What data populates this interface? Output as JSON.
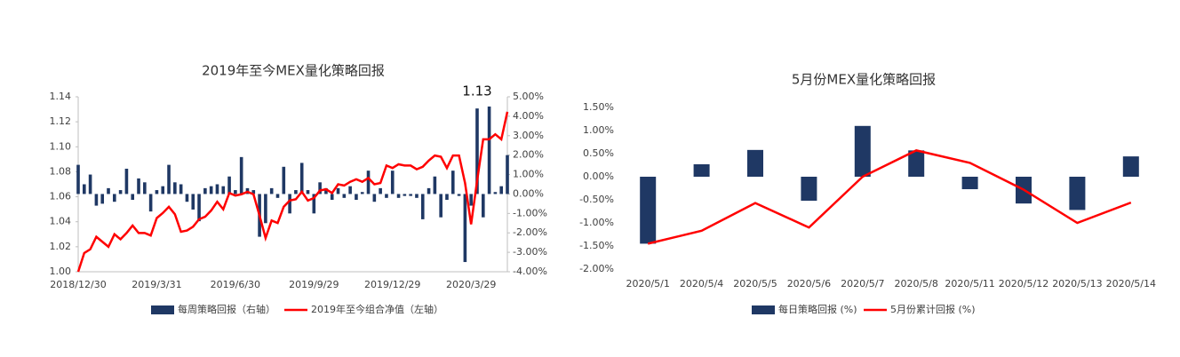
{
  "chart_data": [
    {
      "type": "combo",
      "title": "2019年至今MEX量化策略回报",
      "annotation": "1.13",
      "categories": [
        "2018/12/30",
        null,
        null,
        null,
        null,
        null,
        null,
        null,
        null,
        null,
        null,
        null,
        null,
        "2019/3/31",
        null,
        null,
        null,
        null,
        null,
        null,
        null,
        null,
        null,
        null,
        null,
        null,
        "2019/6/30",
        null,
        null,
        null,
        null,
        null,
        null,
        null,
        null,
        null,
        null,
        null,
        null,
        "2019/9/29",
        null,
        null,
        null,
        null,
        null,
        null,
        null,
        null,
        null,
        null,
        null,
        null,
        "2019/12/29",
        null,
        null,
        null,
        null,
        null,
        null,
        null,
        null,
        null,
        null,
        null,
        null,
        "2020/3/29",
        null,
        null,
        null,
        null,
        null,
        null
      ],
      "series": [
        {
          "name": "每周策略回报（右轴）",
          "type": "bar",
          "axis": "y2",
          "color": "#1f3864",
          "values": [
            1.5,
            0.5,
            1.0,
            -0.6,
            -0.5,
            0.3,
            -0.4,
            0.2,
            1.3,
            -0.3,
            0.8,
            0.6,
            -0.9,
            0.2,
            0.4,
            1.5,
            0.6,
            0.5,
            -0.4,
            -0.8,
            -1.4,
            0.3,
            0.4,
            0.5,
            0.4,
            0.9,
            0.2,
            1.9,
            0.3,
            0.2,
            -2.2,
            -1.5,
            0.3,
            -0.2,
            1.4,
            -1.0,
            0.2,
            1.6,
            0.2,
            -1.0,
            0.6,
            0.3,
            -0.3,
            0.3,
            -0.2,
            0.4,
            -0.3,
            0.1,
            1.2,
            -0.4,
            0.3,
            -0.2,
            1.2,
            -0.2,
            -0.1,
            -0.1,
            -0.2,
            -1.3,
            0.3,
            0.9,
            -1.2,
            -0.3,
            1.2,
            -0.1,
            -3.5,
            -0.6,
            4.4,
            -1.2,
            4.5,
            0.1,
            0.4,
            2.0
          ]
        },
        {
          "name": "2019年至今组合净值（左轴）",
          "type": "line",
          "color": "#ff0000",
          "values": [
            1.0,
            1.015,
            1.018,
            1.028,
            1.024,
            1.02,
            1.03,
            1.026,
            1.031,
            1.037,
            1.031,
            1.031,
            1.029,
            1.043,
            1.047,
            1.052,
            1.046,
            1.032,
            1.033,
            1.036,
            1.042,
            1.044,
            1.049,
            1.056,
            1.05,
            1.063,
            1.061,
            1.062,
            1.064,
            1.062,
            1.045,
            1.027,
            1.041,
            1.039,
            1.052,
            1.057,
            1.058,
            1.064,
            1.057,
            1.059,
            1.065,
            1.066,
            1.063,
            1.07,
            1.069,
            1.072,
            1.074,
            1.072,
            1.075,
            1.07,
            1.071,
            1.085,
            1.083,
            1.086,
            1.085,
            1.085,
            1.082,
            1.084,
            1.089,
            1.093,
            1.092,
            1.083,
            1.093,
            1.093,
            1.071,
            1.038,
            1.073,
            1.106,
            1.106,
            1.11,
            1.106,
            1.128
          ]
        }
      ],
      "ylim": [
        1.0,
        1.14
      ],
      "yticks": [
        {
          "value": 1.0,
          "label": "1.00"
        },
        {
          "value": 1.02,
          "label": "1.02"
        },
        {
          "value": 1.04,
          "label": "1.04"
        },
        {
          "value": 1.06,
          "label": "1.06"
        },
        {
          "value": 1.08,
          "label": "1.08"
        },
        {
          "value": 1.1,
          "label": "1.10"
        },
        {
          "value": 1.12,
          "label": "1.12"
        },
        {
          "value": 1.14,
          "label": "1.14"
        }
      ],
      "y2lim": [
        -4,
        5
      ],
      "y2ticks": [
        {
          "value": -4,
          "label": "-4.00%"
        },
        {
          "value": -3,
          "label": "-3.00%"
        },
        {
          "value": -2,
          "label": "-2.00%"
        },
        {
          "value": -1,
          "label": "-1.00%"
        },
        {
          "value": 0,
          "label": "0.00%"
        },
        {
          "value": 1,
          "label": "1.00%"
        },
        {
          "value": 2,
          "label": "2.00%"
        },
        {
          "value": 3,
          "label": "3.00%"
        },
        {
          "value": 4,
          "label": "4.00%"
        },
        {
          "value": 5,
          "label": "5.00%"
        }
      ],
      "legend": "bottom"
    },
    {
      "type": "combo",
      "title": "5月份MEX量化策略回报",
      "categories": [
        "2020/5/1",
        "2020/5/4",
        "2020/5/5",
        "2020/5/6",
        "2020/5/7",
        "2020/5/8",
        "2020/5/11",
        "2020/5/12",
        "2020/5/13",
        "2020/5/14"
      ],
      "series": [
        {
          "name": "每日策略回报 (%)",
          "type": "bar",
          "color": "#1f3864",
          "values": [
            -1.45,
            0.27,
            0.58,
            -0.52,
            1.1,
            0.57,
            -0.27,
            -0.58,
            -0.72,
            0.44
          ]
        },
        {
          "name": "5月份累计回报 (%)",
          "type": "line",
          "color": "#ff0000",
          "values": [
            -1.45,
            -1.17,
            -0.57,
            -1.1,
            0.0,
            0.57,
            0.3,
            -0.28,
            -1.0,
            -0.56
          ]
        }
      ],
      "ylim": [
        -2,
        1.5
      ],
      "yticks": [
        {
          "value": -2,
          "label": "-2.00%"
        },
        {
          "value": -1.5,
          "label": "-1.50%"
        },
        {
          "value": -1,
          "label": "-1.00%"
        },
        {
          "value": -0.5,
          "label": "-0.50%"
        },
        {
          "value": 0,
          "label": "0.00%"
        },
        {
          "value": 0.5,
          "label": "0.50%"
        },
        {
          "value": 1,
          "label": "1.00%"
        },
        {
          "value": 1.5,
          "label": "1.50%"
        }
      ],
      "legend": "bottom"
    }
  ]
}
